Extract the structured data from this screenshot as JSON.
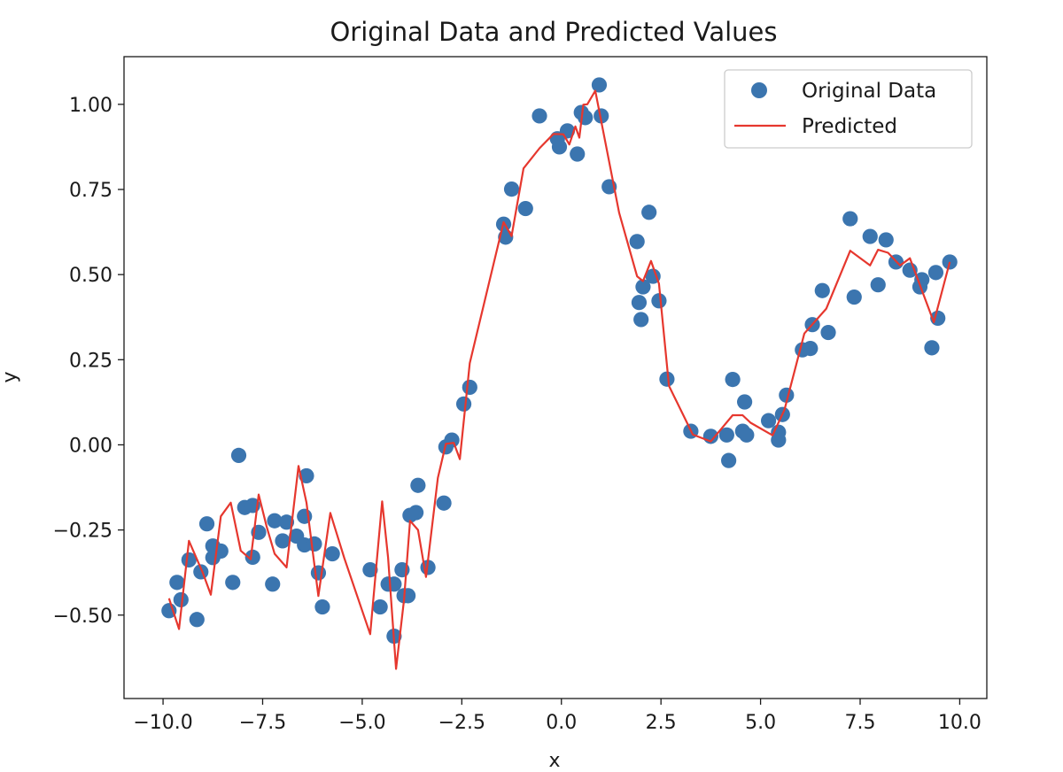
{
  "chart_data": {
    "type": "scatter",
    "title": "Original Data and Predicted Values",
    "xlabel": "x",
    "ylabel": "y",
    "xlim": [
      -10.98,
      10.68
    ],
    "ylim": [
      -0.745,
      1.14
    ],
    "xticks": [
      -10.0,
      -7.5,
      -5.0,
      -2.5,
      0.0,
      2.5,
      5.0,
      7.5,
      10.0
    ],
    "xtick_labels": [
      "−10.0",
      "−7.5",
      "−5.0",
      "−2.5",
      "0.0",
      "2.5",
      "5.0",
      "7.5",
      "10.0"
    ],
    "yticks": [
      -0.5,
      -0.25,
      0.0,
      0.25,
      0.5,
      0.75,
      1.0
    ],
    "ytick_labels": [
      "−0.50",
      "−0.25",
      "0.00",
      "0.25",
      "0.50",
      "0.75",
      "1.00"
    ],
    "grid": false,
    "legend": "top-right",
    "series": [
      {
        "name": "Original Data",
        "kind": "scatter",
        "color": "#3b75af",
        "points": [
          [
            -9.85,
            -0.487
          ],
          [
            -9.65,
            -0.404
          ],
          [
            -9.55,
            -0.455
          ],
          [
            -9.35,
            -0.338
          ],
          [
            -9.15,
            -0.513
          ],
          [
            -9.05,
            -0.373
          ],
          [
            -8.9,
            -0.232
          ],
          [
            -8.75,
            -0.331
          ],
          [
            -8.75,
            -0.297
          ],
          [
            -8.55,
            -0.312
          ],
          [
            -8.25,
            -0.404
          ],
          [
            -8.1,
            -0.031
          ],
          [
            -7.95,
            -0.184
          ],
          [
            -7.75,
            -0.178
          ],
          [
            -7.75,
            -0.33
          ],
          [
            -7.6,
            -0.257
          ],
          [
            -7.25,
            -0.409
          ],
          [
            -7.2,
            -0.223
          ],
          [
            -7.0,
            -0.282
          ],
          [
            -6.9,
            -0.227
          ],
          [
            -6.65,
            -0.268
          ],
          [
            -6.45,
            -0.294
          ],
          [
            -6.4,
            -0.091
          ],
          [
            -6.45,
            -0.21
          ],
          [
            -6.2,
            -0.291
          ],
          [
            -6.1,
            -0.376
          ],
          [
            -6.0,
            -0.476
          ],
          [
            -5.75,
            -0.32
          ],
          [
            -4.8,
            -0.367
          ],
          [
            -4.55,
            -0.476
          ],
          [
            -4.35,
            -0.409
          ],
          [
            -4.2,
            -0.409
          ],
          [
            -4.2,
            -0.562
          ],
          [
            -4.0,
            -0.367
          ],
          [
            -3.95,
            -0.443
          ],
          [
            -3.85,
            -0.443
          ],
          [
            -3.8,
            -0.207
          ],
          [
            -3.65,
            -0.199
          ],
          [
            -3.6,
            -0.119
          ],
          [
            -3.35,
            -0.36
          ],
          [
            -2.95,
            -0.171
          ],
          [
            -2.9,
            -0.006
          ],
          [
            -2.75,
            0.014
          ],
          [
            -2.45,
            0.12
          ],
          [
            -2.3,
            0.169
          ],
          [
            -1.45,
            0.648
          ],
          [
            -1.4,
            0.61
          ],
          [
            -1.25,
            0.751
          ],
          [
            -0.9,
            0.694
          ],
          [
            -0.55,
            0.966
          ],
          [
            -0.05,
            0.875
          ],
          [
            -0.1,
            0.899
          ],
          [
            0.15,
            0.922
          ],
          [
            0.4,
            0.854
          ],
          [
            0.5,
            0.976
          ],
          [
            0.6,
            0.961
          ],
          [
            0.95,
            1.057
          ],
          [
            1.0,
            0.966
          ],
          [
            1.2,
            0.758
          ],
          [
            1.9,
            0.597
          ],
          [
            1.95,
            0.418
          ],
          [
            2.0,
            0.368
          ],
          [
            2.05,
            0.464
          ],
          [
            2.2,
            0.683
          ],
          [
            2.3,
            0.495
          ],
          [
            2.45,
            0.423
          ],
          [
            2.65,
            0.193
          ],
          [
            3.25,
            0.04
          ],
          [
            3.75,
            0.025
          ],
          [
            4.15,
            0.029
          ],
          [
            4.2,
            -0.046
          ],
          [
            4.3,
            0.192
          ],
          [
            4.55,
            0.04
          ],
          [
            4.6,
            0.126
          ],
          [
            4.65,
            0.029
          ],
          [
            5.2,
            0.071
          ],
          [
            5.45,
            0.037
          ],
          [
            5.45,
            0.014
          ],
          [
            5.55,
            0.089
          ],
          [
            5.65,
            0.146
          ],
          [
            6.05,
            0.279
          ],
          [
            6.25,
            0.283
          ],
          [
            6.3,
            0.353
          ],
          [
            6.55,
            0.453
          ],
          [
            6.7,
            0.33
          ],
          [
            7.25,
            0.664
          ],
          [
            7.35,
            0.434
          ],
          [
            7.75,
            0.612
          ],
          [
            7.95,
            0.47
          ],
          [
            8.15,
            0.602
          ],
          [
            8.4,
            0.537
          ],
          [
            8.75,
            0.513
          ],
          [
            9.0,
            0.464
          ],
          [
            9.05,
            0.485
          ],
          [
            9.3,
            0.285
          ],
          [
            9.4,
            0.506
          ],
          [
            9.45,
            0.372
          ],
          [
            9.75,
            0.537
          ]
        ]
      },
      {
        "name": "Predicted",
        "kind": "line",
        "color": "#e6372e",
        "points": [
          [
            -9.85,
            -0.451
          ],
          [
            -9.75,
            -0.487
          ],
          [
            -9.6,
            -0.541
          ],
          [
            -9.35,
            -0.282
          ],
          [
            -9.0,
            -0.376
          ],
          [
            -8.8,
            -0.44
          ],
          [
            -8.55,
            -0.21
          ],
          [
            -8.3,
            -0.17
          ],
          [
            -8.05,
            -0.311
          ],
          [
            -7.8,
            -0.336
          ],
          [
            -7.6,
            -0.146
          ],
          [
            -7.4,
            -0.24
          ],
          [
            -7.2,
            -0.32
          ],
          [
            -6.9,
            -0.36
          ],
          [
            -6.6,
            -0.062
          ],
          [
            -6.4,
            -0.17
          ],
          [
            -6.1,
            -0.444
          ],
          [
            -5.8,
            -0.2
          ],
          [
            -5.45,
            -0.333
          ],
          [
            -4.8,
            -0.556
          ],
          [
            -4.5,
            -0.166
          ],
          [
            -4.35,
            -0.331
          ],
          [
            -4.15,
            -0.658
          ],
          [
            -3.95,
            -0.455
          ],
          [
            -3.8,
            -0.223
          ],
          [
            -3.6,
            -0.25
          ],
          [
            -3.4,
            -0.388
          ],
          [
            -3.1,
            -0.097
          ],
          [
            -2.9,
            0.003
          ],
          [
            -2.7,
            0.006
          ],
          [
            -2.55,
            -0.042
          ],
          [
            -2.3,
            0.24
          ],
          [
            -1.45,
            0.654
          ],
          [
            -1.25,
            0.613
          ],
          [
            -0.95,
            0.812
          ],
          [
            -0.55,
            0.871
          ],
          [
            -0.2,
            0.913
          ],
          [
            0.05,
            0.912
          ],
          [
            0.2,
            0.882
          ],
          [
            0.35,
            0.935
          ],
          [
            0.45,
            0.902
          ],
          [
            0.55,
            0.999
          ],
          [
            0.65,
            1.0
          ],
          [
            0.85,
            1.04
          ],
          [
            1.45,
            0.682
          ],
          [
            1.9,
            0.495
          ],
          [
            2.05,
            0.481
          ],
          [
            2.25,
            0.54
          ],
          [
            2.45,
            0.473
          ],
          [
            2.7,
            0.173
          ],
          [
            3.3,
            0.03
          ],
          [
            3.75,
            0.01
          ],
          [
            4.0,
            0.045
          ],
          [
            4.3,
            0.087
          ],
          [
            4.55,
            0.087
          ],
          [
            4.75,
            0.065
          ],
          [
            5.3,
            0.028
          ],
          [
            5.6,
            0.103
          ],
          [
            6.1,
            0.327
          ],
          [
            6.65,
            0.4
          ],
          [
            7.25,
            0.57
          ],
          [
            7.75,
            0.527
          ],
          [
            7.95,
            0.573
          ],
          [
            8.2,
            0.564
          ],
          [
            8.5,
            0.527
          ],
          [
            8.75,
            0.548
          ],
          [
            9.35,
            0.36
          ],
          [
            9.75,
            0.537
          ]
        ]
      }
    ]
  }
}
